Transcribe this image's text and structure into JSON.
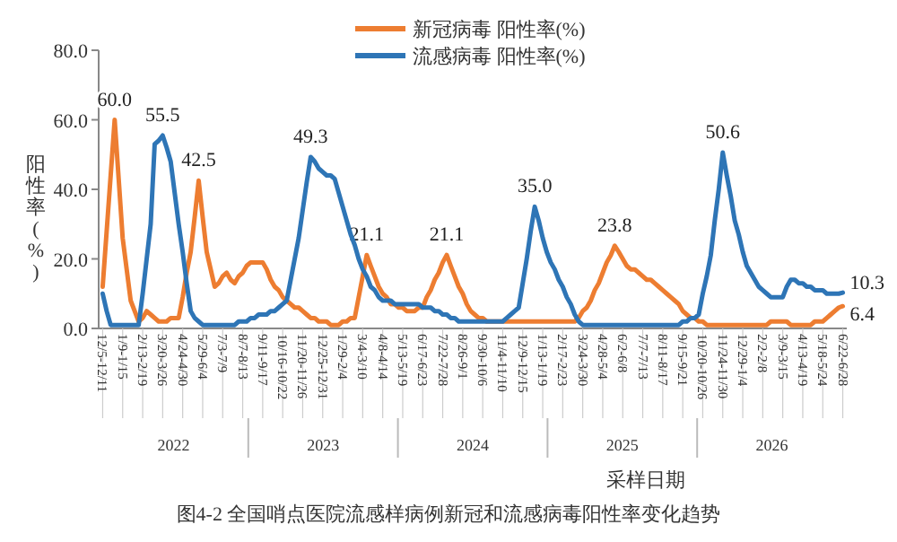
{
  "chart_data": {
    "type": "line",
    "title": "图4-2 全国哨点医院流感样病例新冠和流感病毒阳性率变化趋势",
    "xlabel": "采样日期",
    "ylabel": "阳性率(%)",
    "annotations": [
      "2022",
      "2023",
      "2024",
      "2025",
      "2026"
    ],
    "categories": [
      "12/5-12/11",
      null,
      null,
      null,
      null,
      "1/9-1/15",
      null,
      null,
      null,
      null,
      "2/13-2/19",
      null,
      null,
      null,
      null,
      "3/20-3/26",
      null,
      null,
      null,
      null,
      "4/24-4/30",
      null,
      null,
      null,
      null,
      "5/29-6/4",
      null,
      null,
      null,
      null,
      "7/3-7/9",
      null,
      null,
      null,
      null,
      "8/7-8/13",
      null,
      null,
      null,
      null,
      "9/11-9/17",
      null,
      null,
      null,
      null,
      "10/16-10/22",
      null,
      null,
      null,
      null,
      "11/20-11/26",
      null,
      null,
      null,
      null,
      "12/25-12/31",
      null,
      null,
      null,
      null,
      "1/29-2/4",
      null,
      null,
      null,
      null,
      "3/4-3/10",
      null,
      null,
      null,
      null,
      "4/8-4/14",
      null,
      null,
      null,
      null,
      "5/13-5/19",
      null,
      null,
      null,
      null,
      "6/17-6/23",
      null,
      null,
      null,
      null,
      "7/22-7/28",
      null,
      null,
      null,
      null,
      "8/26-9/1",
      null,
      null,
      null,
      null,
      "9/30-10/6",
      null,
      null,
      null,
      null,
      "11/4-11/10",
      null,
      null,
      null,
      null,
      "12/9-12/15",
      null,
      null,
      null,
      null,
      "1/13-1/19",
      null,
      null,
      null,
      null,
      "2/17-2/23",
      null,
      null,
      null,
      null,
      "3/24-3/30",
      null,
      null,
      null,
      null,
      "4/28-5/4",
      null,
      null,
      null,
      null,
      "6/2-6/8",
      null,
      null,
      null,
      null,
      "7/7-7/13",
      null,
      null,
      null,
      null,
      "8/11-8/17",
      null,
      null,
      null,
      null,
      "9/15-9/21",
      null,
      null,
      null,
      null,
      "10/20-10/26",
      null,
      null,
      null,
      null,
      "11/24-11/30",
      null,
      null,
      null,
      null,
      "12/29-1/4",
      null,
      null,
      null,
      null,
      "2/2-2/8",
      null,
      null,
      null,
      null,
      "3/9-3/15",
      null,
      null,
      null,
      null,
      "4/13-4/19",
      null,
      null,
      null,
      null,
      "5/18-5/24",
      null,
      null,
      null,
      null,
      "6/22-6/28"
    ],
    "ylim": [
      0,
      80
    ],
    "yticks": [
      {
        "value": 0,
        "label": "0.0"
      },
      {
        "value": 20,
        "label": "20.0"
      },
      {
        "value": 40,
        "label": "40.0"
      },
      {
        "value": 60,
        "label": "60.0"
      },
      {
        "value": 80,
        "label": "80.0"
      }
    ],
    "grid": false,
    "legend": "top",
    "marker": "none",
    "line_style": "solid",
    "series": [
      {
        "name": "新冠病毒 阳性率(%)",
        "color": "#ed7d31",
        "values": [
          12,
          28,
          44,
          60,
          43,
          26,
          17,
          8,
          5,
          2,
          3,
          5,
          4,
          3,
          2,
          2,
          2,
          3,
          3,
          3,
          9,
          16,
          22,
          32,
          42.5,
          32,
          22,
          17,
          12,
          13,
          15,
          16,
          14,
          13,
          15,
          16,
          18,
          19,
          19,
          19,
          19,
          17,
          14,
          12,
          11,
          9,
          8,
          7,
          6,
          6,
          5,
          4,
          3,
          3,
          2,
          2,
          2,
          1,
          1,
          1,
          2,
          2,
          3,
          3,
          9,
          15,
          21.1,
          18,
          15,
          12,
          10,
          9,
          7,
          7,
          6,
          6,
          5,
          5,
          5,
          6,
          6,
          9,
          11,
          14,
          16,
          19,
          21.1,
          18,
          15,
          12,
          10,
          7,
          5,
          4,
          3,
          3,
          2,
          2,
          2,
          2,
          2,
          2,
          2,
          2,
          2,
          2,
          2,
          2,
          2,
          2,
          2,
          2,
          2,
          2,
          2,
          2,
          2,
          2,
          2,
          3,
          5,
          6,
          8,
          11,
          13,
          16,
          19,
          21,
          23.8,
          22,
          20,
          18,
          17,
          17,
          16,
          15,
          14,
          14,
          13,
          12,
          11,
          10,
          9,
          8,
          7,
          5,
          4,
          3,
          3,
          2,
          2,
          1,
          1,
          1,
          1,
          1,
          1,
          1,
          1,
          1,
          1,
          1,
          1,
          1,
          1,
          1,
          1,
          2,
          2,
          2,
          2,
          2,
          1,
          1,
          1,
          1,
          1,
          1,
          2,
          2,
          2,
          3,
          4,
          5,
          6,
          6.4
        ],
        "value_labels": [
          null,
          null,
          null,
          "60.0",
          null,
          null,
          null,
          null,
          null,
          null,
          null,
          null,
          null,
          null,
          null,
          null,
          null,
          null,
          null,
          null,
          null,
          null,
          null,
          null,
          "42.5",
          null,
          null,
          null,
          null,
          null,
          null,
          null,
          null,
          null,
          null,
          null,
          null,
          null,
          null,
          null,
          null,
          null,
          null,
          null,
          null,
          null,
          null,
          null,
          null,
          null,
          null,
          null,
          null,
          null,
          null,
          null,
          null,
          null,
          null,
          null,
          null,
          null,
          null,
          null,
          null,
          null,
          "21.1",
          null,
          null,
          null,
          null,
          null,
          null,
          null,
          null,
          null,
          null,
          null,
          null,
          null,
          null,
          null,
          null,
          null,
          null,
          null,
          "21.1",
          null,
          null,
          null,
          null,
          null,
          null,
          null,
          null,
          null,
          null,
          null,
          null,
          null,
          null,
          null,
          null,
          null,
          null,
          null,
          null,
          null,
          null,
          null,
          null,
          null,
          null,
          null,
          null,
          null,
          null,
          null,
          null,
          null,
          null,
          null,
          null,
          null,
          null,
          null,
          null,
          null,
          "23.8",
          null,
          null,
          null,
          null,
          null,
          null,
          null,
          null,
          null,
          null,
          null,
          null,
          null,
          null,
          null,
          null,
          null,
          null,
          null,
          null,
          null,
          null,
          null,
          null,
          null,
          null,
          null,
          null,
          null,
          null,
          null,
          null,
          null,
          null,
          null,
          null,
          null,
          null,
          null,
          null,
          null,
          null,
          null,
          null,
          null,
          null,
          null,
          null,
          null,
          null,
          null,
          null,
          null,
          null,
          null,
          null,
          "6.4"
        ]
      },
      {
        "name": "流感病毒 阳性率(%)",
        "color": "#2e75b6",
        "values": [
          10,
          5,
          1,
          1,
          1,
          1,
          1,
          1,
          1,
          1,
          10,
          20,
          30,
          53,
          54,
          55.5,
          52,
          48,
          39,
          30,
          22,
          13,
          5,
          3,
          2,
          1,
          1,
          1,
          1,
          1,
          1,
          1,
          1,
          1,
          2,
          2,
          2,
          3,
          3,
          4,
          4,
          4,
          5,
          5,
          6,
          7,
          8,
          14,
          20,
          26,
          34,
          42,
          49.3,
          48,
          46,
          45,
          44,
          44,
          43,
          39,
          35,
          31,
          27,
          24,
          20,
          17,
          15,
          12,
          11,
          9,
          8,
          8,
          8,
          7,
          7,
          7,
          7,
          7,
          7,
          7,
          6,
          6,
          6,
          5,
          5,
          4,
          4,
          3,
          3,
          2,
          2,
          2,
          2,
          2,
          2,
          2,
          2,
          2,
          2,
          2,
          2,
          3,
          4,
          5,
          6,
          13,
          20,
          28,
          35.0,
          31,
          26,
          22,
          19,
          17,
          14,
          12,
          9,
          7,
          4,
          2,
          1,
          1,
          1,
          1,
          1,
          1,
          1,
          1,
          1,
          1,
          1,
          1,
          1,
          1,
          1,
          1,
          1,
          1,
          1,
          1,
          1,
          1,
          1,
          1,
          1,
          2,
          2,
          3,
          3,
          4,
          10,
          15,
          21,
          31,
          40,
          50.6,
          44,
          38,
          31,
          27,
          22,
          18,
          16,
          14,
          12,
          11,
          10,
          9,
          9,
          9,
          9,
          12,
          14,
          14,
          13,
          13,
          12,
          12,
          11,
          11,
          11,
          10,
          10,
          10,
          10,
          10.3
        ],
        "value_labels": [
          null,
          null,
          null,
          null,
          null,
          null,
          null,
          null,
          null,
          null,
          null,
          null,
          null,
          null,
          null,
          "55.5",
          null,
          null,
          null,
          null,
          null,
          null,
          null,
          null,
          null,
          null,
          null,
          null,
          null,
          null,
          null,
          null,
          null,
          null,
          null,
          null,
          null,
          null,
          null,
          null,
          null,
          null,
          null,
          null,
          null,
          null,
          null,
          null,
          null,
          null,
          null,
          null,
          "49.3",
          null,
          null,
          null,
          null,
          null,
          null,
          null,
          null,
          null,
          null,
          null,
          null,
          null,
          null,
          null,
          null,
          null,
          null,
          null,
          null,
          null,
          null,
          null,
          null,
          null,
          null,
          null,
          null,
          null,
          null,
          null,
          null,
          null,
          null,
          null,
          null,
          null,
          null,
          null,
          null,
          null,
          null,
          null,
          null,
          null,
          null,
          null,
          null,
          null,
          null,
          null,
          null,
          null,
          null,
          null,
          "35.0",
          null,
          null,
          null,
          null,
          null,
          null,
          null,
          null,
          null,
          null,
          null,
          null,
          null,
          null,
          null,
          null,
          null,
          null,
          null,
          null,
          null,
          null,
          null,
          null,
          null,
          null,
          null,
          null,
          null,
          null,
          null,
          null,
          null,
          null,
          null,
          null,
          null,
          null,
          null,
          null,
          null,
          null,
          null,
          null,
          null,
          null,
          "50.6",
          null,
          null,
          null,
          null,
          null,
          null,
          null,
          null,
          null,
          null,
          null,
          null,
          null,
          null,
          null,
          null,
          null,
          null,
          null,
          null,
          null,
          null,
          null,
          null,
          null,
          null,
          null,
          null,
          null,
          "10.3"
        ]
      }
    ]
  }
}
